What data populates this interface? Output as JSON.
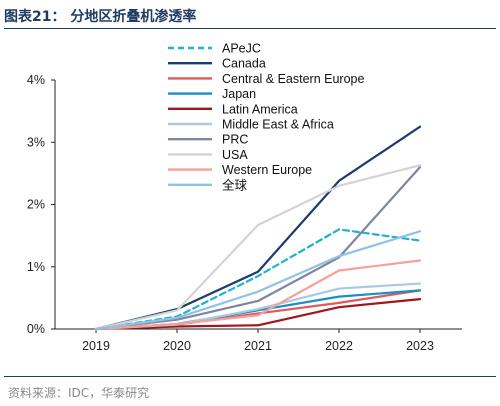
{
  "title": "图表21：  分地区折叠机渗透率",
  "source": "资料来源：IDC，华泰研究",
  "chart_data": {
    "type": "line",
    "x": [
      "2019",
      "2020",
      "2021",
      "2022",
      "2023"
    ],
    "yticks": [
      "0%",
      "1%",
      "2%",
      "3%",
      "4%"
    ],
    "ylim": [
      0,
      4
    ],
    "grid": false,
    "legend_position": "top-center",
    "series": [
      {
        "name": "APeJC",
        "color": "#1fb3cc",
        "dash": true,
        "values": [
          0.0,
          0.2,
          0.85,
          1.6,
          1.42
        ]
      },
      {
        "name": "Canada",
        "color": "#1d3c6e",
        "dash": false,
        "values": [
          0.0,
          0.32,
          0.92,
          2.38,
          3.25
        ]
      },
      {
        "name": "Central & Eastern Europe",
        "color": "#e05a5a",
        "dash": false,
        "values": [
          0.0,
          0.07,
          0.25,
          0.42,
          0.62
        ]
      },
      {
        "name": "Japan",
        "color": "#1b8ec6",
        "dash": false,
        "values": [
          0.0,
          0.08,
          0.3,
          0.52,
          0.62
        ]
      },
      {
        "name": "Latin America",
        "color": "#a0161c",
        "dash": false,
        "values": [
          0.0,
          0.04,
          0.06,
          0.35,
          0.48
        ]
      },
      {
        "name": "Middle East & Africa",
        "color": "#a9c9e1",
        "dash": false,
        "values": [
          0.0,
          0.07,
          0.32,
          0.65,
          0.73
        ]
      },
      {
        "name": "PRC",
        "color": "#7f85a0",
        "dash": false,
        "values": [
          0.0,
          0.15,
          0.45,
          1.15,
          2.6
        ]
      },
      {
        "name": "USA",
        "color": "#d3d3d3",
        "dash": false,
        "values": [
          0.0,
          0.3,
          1.67,
          2.3,
          2.63
        ]
      },
      {
        "name": "Western Europe",
        "color": "#f4a19a",
        "dash": false,
        "values": [
          0.0,
          0.08,
          0.22,
          0.94,
          1.1
        ]
      },
      {
        "name": "全球",
        "color": "#8ec2e6",
        "dash": false,
        "values": [
          0.0,
          0.18,
          0.6,
          1.17,
          1.57
        ]
      }
    ]
  }
}
